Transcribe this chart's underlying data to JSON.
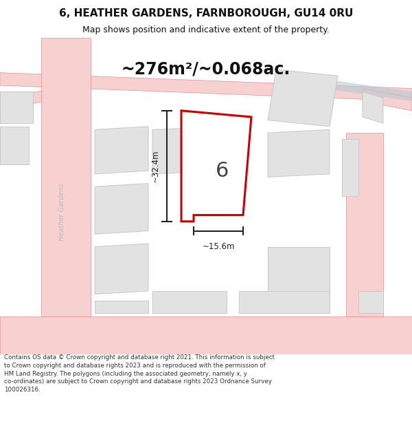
{
  "title": "6, HEATHER GARDENS, FARNBOROUGH, GU14 0RU",
  "subtitle": "Map shows position and indicative extent of the property.",
  "area_text": "~276m²/~0.068ac.",
  "label_number": "6",
  "dim_height": "~32.4m",
  "dim_width": "~15.6m",
  "street_label": "Heather Gardens",
  "footer_line1": "Contains OS data © Crown copyright and database right 2021. This information is subject",
  "footer_line2": "to Crown copyright and database rights 2023 and is reproduced with the permission of",
  "footer_line3": "HM Land Registry. The polygons (including the associated geometry, namely x, y",
  "footer_line4": "co-ordinates) are subject to Crown copyright and database rights 2023 Ordnance Survey",
  "footer_line5": "100026316.",
  "bg_color": "#ffffff",
  "map_bg": "#efefef",
  "road_color": "#f7d0d0",
  "road_edge_color": "#e89090",
  "plot_fill": "#ffffff",
  "plot_edge": "#cc0000",
  "building_color": "#e2e2e2",
  "building_edge": "#c8c8c8",
  "dim_color": "#222222",
  "area_color": "#111111",
  "title_color": "#111111",
  "street_color": "#bbbbbb",
  "band_color": "#aec8d0"
}
